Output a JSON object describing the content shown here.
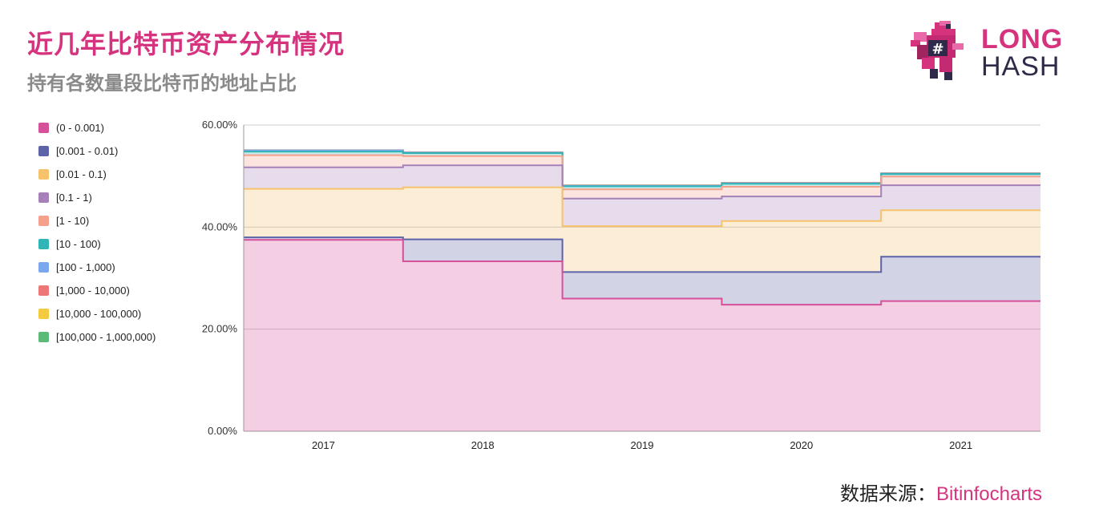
{
  "header": {
    "title": "近几年比特币资产分布情况",
    "subtitle": "持有各数量段比特币的地址占比"
  },
  "logo": {
    "line1": "LONG",
    "line2": "HASH"
  },
  "source": {
    "label": "数据来源：",
    "name": "Bitinfocharts"
  },
  "colors": {
    "title": "#d6337f",
    "subtitle": "#8a8a8a",
    "brand_pink": "#d6337f",
    "brand_dark": "#2f2a4a"
  },
  "chart_data": {
    "type": "area",
    "stacked": true,
    "step": true,
    "categories": [
      "2017",
      "2018",
      "2019",
      "2020",
      "2021"
    ],
    "yticks": [
      "0.00%",
      "20.00%",
      "40.00%",
      "60.00%"
    ],
    "ylim": [
      0,
      60
    ],
    "grid": true,
    "legend_position": "left",
    "series": [
      {
        "name": "(0 - 0.001)",
        "color": "#d6509a",
        "values": [
          37.5,
          33.3,
          26.0,
          24.8,
          25.5
        ]
      },
      {
        "name": "[0.001 - 0.01)",
        "color": "#5c63a7",
        "values": [
          0.5,
          4.3,
          5.2,
          6.4,
          8.7
        ]
      },
      {
        "name": "[0.01 - 0.1)",
        "color": "#f6c26b",
        "values": [
          9.5,
          10.2,
          9.0,
          10.0,
          9.1
        ]
      },
      {
        "name": "[0.1 - 1)",
        "color": "#a680b9",
        "values": [
          4.2,
          4.3,
          5.4,
          4.8,
          4.9
        ]
      },
      {
        "name": "[1 - 10)",
        "color": "#f4a08a",
        "values": [
          2.4,
          1.8,
          1.8,
          1.9,
          1.7
        ]
      },
      {
        "name": "[10 - 100)",
        "color": "#2fb5b5",
        "values": [
          0.7,
          0.6,
          0.6,
          0.6,
          0.5
        ]
      },
      {
        "name": "[100 - 1,000)",
        "color": "#7ba7ef",
        "values": [
          0.2,
          0.1,
          0.1,
          0.1,
          0.1
        ]
      },
      {
        "name": "[1,000 - 10,000)",
        "color": "#ec7774",
        "values": [
          0.05,
          0.05,
          0.05,
          0.05,
          0.05
        ]
      },
      {
        "name": "[10,000 - 100,000)",
        "color": "#f3ca40",
        "values": [
          0.01,
          0.01,
          0.01,
          0.01,
          0.01
        ]
      },
      {
        "name": "[100,000 - 1,000,000)",
        "color": "#5bba78",
        "values": [
          0.01,
          0.01,
          0.01,
          0.01,
          0.01
        ]
      }
    ]
  }
}
